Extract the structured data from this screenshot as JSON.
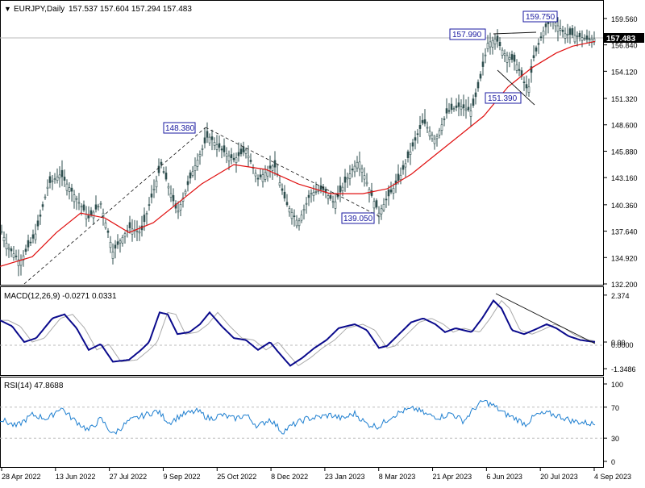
{
  "colors": {
    "candle": "#2f4f4f",
    "ma": "#e01010",
    "macd_line": "#0a0a8c",
    "macd_signal": "#aaaaaa",
    "rsi": "#1e7fd0",
    "grid": "#bbbbbb",
    "annotation": "#111111",
    "label_box": "#1a1aa0",
    "frame": "#000000"
  },
  "header": {
    "symbol": "EURJPY,Daily",
    "ohlc": "157.537 157.604 157.294 157.483",
    "triangle_glyph": "▼"
  },
  "chart_data": [
    {
      "type": "candlestick",
      "panel": "price",
      "title": "EURJPY,Daily 157.537 157.604 157.294 157.483",
      "x_labels": [
        "28 Apr 2022",
        "13 Jun 2022",
        "27 Jul 2022",
        "9 Sep 2022",
        "25 Oct 2022",
        "8 Dec 2022",
        "23 Jan 2023",
        "8 Mar 2023",
        "21 Apr 2023",
        "6 Jun 2023",
        "20 Jul 2023",
        "4 Sep 2023"
      ],
      "y_ticks": [
        "159.560",
        "156.840",
        "154.120",
        "151.320",
        "148.600",
        "145.880",
        "143.160",
        "140.360",
        "137.640",
        "134.920",
        "132.200"
      ],
      "ylim": [
        132.2,
        160.8
      ],
      "last_price": "157.483",
      "approx_close_path": [
        [
          0,
          138.0
        ],
        [
          10,
          136.0
        ],
        [
          25,
          134.5
        ],
        [
          45,
          137.5
        ],
        [
          60,
          142.5
        ],
        [
          75,
          143.5
        ],
        [
          95,
          141.0
        ],
        [
          110,
          139.0
        ],
        [
          125,
          140.5
        ],
        [
          140,
          135.5
        ],
        [
          160,
          138.0
        ],
        [
          175,
          137.5
        ],
        [
          200,
          144.5
        ],
        [
          220,
          139.5
        ],
        [
          240,
          144.0
        ],
        [
          258,
          147.5
        ],
        [
          275,
          146.0
        ],
        [
          290,
          145.0
        ],
        [
          305,
          146.0
        ],
        [
          320,
          143.0
        ],
        [
          340,
          144.5
        ],
        [
          355,
          140.5
        ],
        [
          370,
          138.5
        ],
        [
          385,
          141.5
        ],
        [
          400,
          142.0
        ],
        [
          415,
          140.5
        ],
        [
          430,
          143.0
        ],
        [
          445,
          145.0
        ],
        [
          460,
          141.5
        ],
        [
          470,
          139.5
        ],
        [
          480,
          141.0
        ],
        [
          495,
          143.0
        ],
        [
          510,
          146.0
        ],
        [
          525,
          149.0
        ],
        [
          540,
          147.0
        ],
        [
          555,
          150.0
        ],
        [
          570,
          150.5
        ],
        [
          585,
          150.0
        ],
        [
          595,
          153.0
        ],
        [
          605,
          157.0
        ],
        [
          615,
          157.5
        ],
        [
          625,
          156.0
        ],
        [
          640,
          155.0
        ],
        [
          655,
          152.0
        ],
        [
          662,
          155.5
        ],
        [
          675,
          158.5
        ],
        [
          685,
          159.5
        ],
        [
          700,
          158.0
        ],
        [
          715,
          157.8
        ],
        [
          728,
          157.4
        ],
        [
          738,
          157.48
        ]
      ],
      "approx_ma_path": [
        [
          0,
          134.0
        ],
        [
          40,
          135.0
        ],
        [
          70,
          137.5
        ],
        [
          100,
          139.5
        ],
        [
          130,
          139.0
        ],
        [
          160,
          137.5
        ],
        [
          190,
          138.5
        ],
        [
          220,
          140.5
        ],
        [
          250,
          142.5
        ],
        [
          290,
          144.5
        ],
        [
          330,
          144.0
        ],
        [
          370,
          142.5
        ],
        [
          410,
          141.5
        ],
        [
          450,
          141.5
        ],
        [
          480,
          142.0
        ],
        [
          510,
          143.5
        ],
        [
          540,
          145.5
        ],
        [
          570,
          147.5
        ],
        [
          600,
          149.5
        ],
        [
          630,
          152.5
        ],
        [
          660,
          154.5
        ],
        [
          690,
          156.0
        ],
        [
          710,
          156.7
        ],
        [
          738,
          157.2
        ]
      ],
      "annotations": [
        {
          "label": "148.380",
          "value": 148.38
        },
        {
          "label": "139.050",
          "value": 139.05
        },
        {
          "label": "157.990",
          "value": 157.99
        },
        {
          "label": "159.750",
          "value": 159.75
        },
        {
          "label": "151.390",
          "value": 151.39
        }
      ]
    },
    {
      "type": "line",
      "panel": "macd",
      "title": "MACD(12,26,9) -0.0271 0.0331",
      "y_ticks": [
        "2.374",
        "0.00",
        "-1.3486"
      ],
      "ylim": [
        -1.55,
        2.45
      ],
      "zero_label": "0.0000",
      "approx_macd_path": [
        [
          0,
          1.1
        ],
        [
          15,
          0.8
        ],
        [
          30,
          0.0
        ],
        [
          45,
          0.2
        ],
        [
          65,
          1.2
        ],
        [
          80,
          1.4
        ],
        [
          95,
          0.7
        ],
        [
          110,
          -0.4
        ],
        [
          125,
          -0.1
        ],
        [
          140,
          -1.0
        ],
        [
          160,
          -0.9
        ],
        [
          175,
          -0.4
        ],
        [
          185,
          0.0
        ],
        [
          198,
          1.5
        ],
        [
          208,
          1.4
        ],
        [
          220,
          0.4
        ],
        [
          235,
          0.5
        ],
        [
          248,
          0.9
        ],
        [
          260,
          1.5
        ],
        [
          275,
          0.8
        ],
        [
          290,
          0.2
        ],
        [
          305,
          0.1
        ],
        [
          320,
          -0.4
        ],
        [
          335,
          0.0
        ],
        [
          345,
          -0.5
        ],
        [
          360,
          -1.2
        ],
        [
          375,
          -0.8
        ],
        [
          390,
          -0.3
        ],
        [
          405,
          0.1
        ],
        [
          420,
          0.7
        ],
        [
          440,
          0.9
        ],
        [
          455,
          0.6
        ],
        [
          470,
          -0.3
        ],
        [
          480,
          -0.2
        ],
        [
          495,
          0.4
        ],
        [
          510,
          1.0
        ],
        [
          525,
          1.2
        ],
        [
          540,
          0.9
        ],
        [
          552,
          0.5
        ],
        [
          565,
          0.7
        ],
        [
          585,
          0.5
        ],
        [
          598,
          1.2
        ],
        [
          612,
          2.1
        ],
        [
          622,
          1.7
        ],
        [
          635,
          0.6
        ],
        [
          650,
          0.4
        ],
        [
          662,
          0.6
        ],
        [
          678,
          0.9
        ],
        [
          690,
          0.7
        ],
        [
          705,
          0.3
        ],
        [
          720,
          0.1
        ],
        [
          738,
          0.0
        ]
      ]
    },
    {
      "type": "line",
      "panel": "rsi",
      "title": "RSI(14) 47.8688",
      "y_ticks": [
        "100",
        "70",
        "30",
        "0"
      ],
      "ylim": [
        0,
        100
      ],
      "levels": [
        70,
        30
      ],
      "approx_rsi_path": [
        [
          0,
          55
        ],
        [
          20,
          45
        ],
        [
          40,
          60
        ],
        [
          60,
          55
        ],
        [
          75,
          70
        ],
        [
          90,
          55
        ],
        [
          110,
          40
        ],
        [
          125,
          55
        ],
        [
          140,
          35
        ],
        [
          160,
          52
        ],
        [
          180,
          60
        ],
        [
          195,
          65
        ],
        [
          210,
          50
        ],
        [
          225,
          60
        ],
        [
          245,
          65
        ],
        [
          260,
          55
        ],
        [
          275,
          60
        ],
        [
          290,
          55
        ],
        [
          305,
          60
        ],
        [
          320,
          45
        ],
        [
          335,
          55
        ],
        [
          350,
          38
        ],
        [
          365,
          48
        ],
        [
          380,
          55
        ],
        [
          395,
          57
        ],
        [
          410,
          60
        ],
        [
          425,
          55
        ],
        [
          440,
          62
        ],
        [
          455,
          48
        ],
        [
          470,
          45
        ],
        [
          485,
          58
        ],
        [
          500,
          65
        ],
        [
          515,
          68
        ],
        [
          530,
          60
        ],
        [
          545,
          57
        ],
        [
          560,
          62
        ],
        [
          575,
          52
        ],
        [
          590,
          70
        ],
        [
          600,
          78
        ],
        [
          612,
          72
        ],
        [
          625,
          62
        ],
        [
          640,
          55
        ],
        [
          652,
          48
        ],
        [
          665,
          60
        ],
        [
          680,
          62
        ],
        [
          695,
          58
        ],
        [
          710,
          52
        ],
        [
          725,
          50
        ],
        [
          738,
          48
        ]
      ]
    }
  ]
}
